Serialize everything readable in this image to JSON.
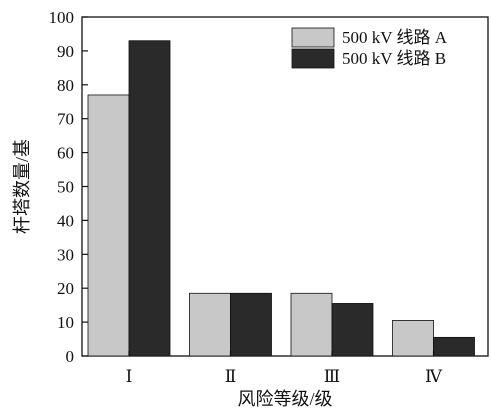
{
  "chart_data": {
    "type": "bar",
    "title": "",
    "xlabel": "风险等级/级",
    "ylabel": "杆塔数量/基",
    "categories": [
      "Ⅰ",
      "Ⅱ",
      "Ⅲ",
      "Ⅳ"
    ],
    "series": [
      {
        "name": "500 kV 线路 A",
        "values": [
          77,
          18.5,
          18.5,
          10.5
        ],
        "color": "#c8c8c8"
      },
      {
        "name": "500 kV 线路 B",
        "values": [
          93,
          18.5,
          15.5,
          5.5
        ],
        "color": "#2a2a2a"
      }
    ],
    "ylim": [
      0,
      100
    ],
    "yticks": [
      "0",
      "10",
      "20",
      "30",
      "40",
      "50",
      "60",
      "70",
      "80",
      "90",
      "100"
    ],
    "grid": false,
    "legend_position": "top-right"
  }
}
